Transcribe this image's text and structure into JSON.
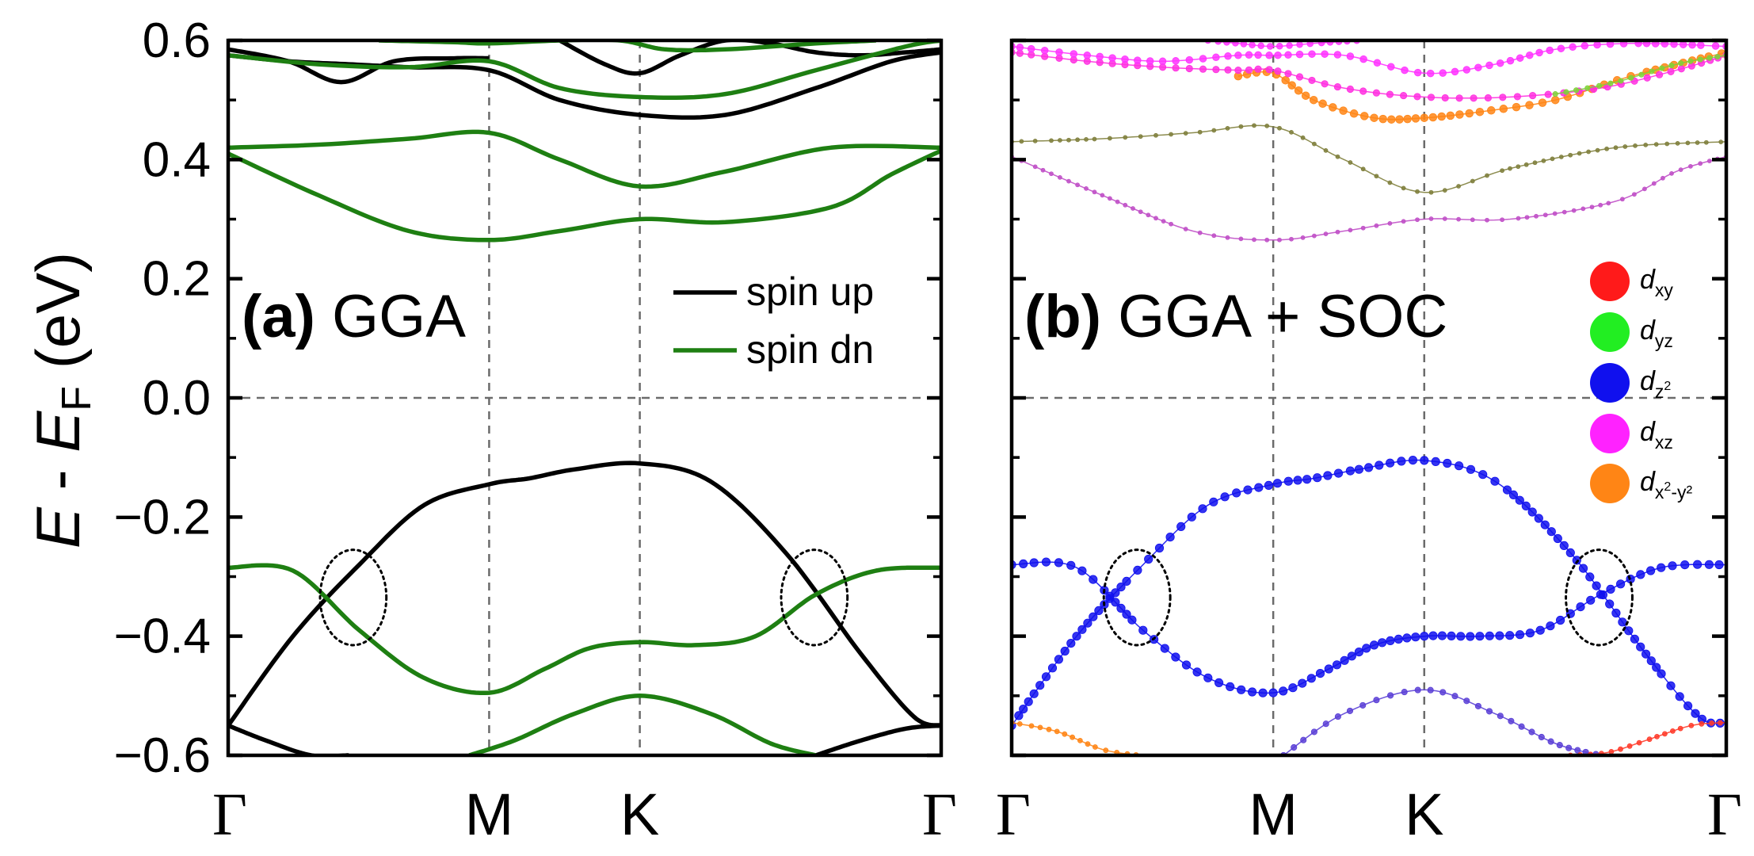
{
  "chart_data": [
    {
      "type": "line",
      "panel_label": "(a)",
      "title": "GGA",
      "ylabel": "E - E_F (eV)",
      "ylim": [
        -0.6,
        0.6
      ],
      "yticks": [
        "0.6",
        "0.4",
        "0.2",
        "0.0",
        "−0.2",
        "−0.4",
        "−0.6"
      ],
      "kpath": [
        "Γ",
        "M",
        "K",
        "Γ"
      ],
      "kpath_positions": [
        0,
        1.732,
        2.732,
        4.732
      ],
      "legend": [
        "spin up",
        "spin dn"
      ],
      "series": [
        {
          "name": "spin up",
          "color": "#000000",
          "bands": [
            {
              "k": [
                0,
                0.43,
                0.87,
                1.3,
                1.732,
                2.0,
                2.3,
                2.732,
                3.2,
                3.7,
                4.2,
                4.55,
                4.732
              ],
              "e": [
                -0.55,
                -0.4,
                -0.28,
                -0.18,
                -0.145,
                -0.135,
                -0.12,
                -0.11,
                -0.14,
                -0.26,
                -0.43,
                -0.535,
                -0.55
              ]
            },
            {
              "k": [
                0,
                0.25,
                0.55,
                0.8
              ],
              "e": [
                -0.55,
                -0.575,
                -0.6,
                -0.6
              ]
            },
            {
              "k": [
                3.9,
                4.2,
                4.5,
                4.732
              ],
              "e": [
                -0.6,
                -0.575,
                -0.555,
                -0.55
              ]
            },
            {
              "k": [
                0,
                0.4,
                0.75,
                1.1,
                1.5,
                1.732
              ],
              "e": [
                0.585,
                0.565,
                0.53,
                0.565,
                0.57,
                0.57
              ]
            },
            {
              "k": [
                0,
                0.4,
                0.8,
                1.2,
                1.732,
                2.2,
                2.732,
                3.3,
                3.9,
                4.4,
                4.732
              ],
              "e": [
                0.575,
                0.565,
                0.56,
                0.555,
                0.55,
                0.5,
                0.475,
                0.475,
                0.52,
                0.565,
                0.58
              ]
            },
            {
              "k": [
                2.2,
                2.5,
                2.732,
                3.0,
                3.3,
                3.6,
                3.9,
                4.2,
                4.5,
                4.732
              ],
              "e": [
                0.6,
                0.56,
                0.545,
                0.575,
                0.6,
                0.595,
                0.58,
                0.575,
                0.58,
                0.585
              ]
            }
          ]
        },
        {
          "name": "spin dn",
          "color": "#1e7f12",
          "bands": [
            {
              "k": [
                0,
                0.43,
                0.87,
                1.3,
                1.732,
                2.1,
                2.4,
                2.732,
                3.1,
                3.5,
                3.9,
                4.3,
                4.732
              ],
              "e": [
                -0.285,
                -0.29,
                -0.39,
                -0.47,
                -0.495,
                -0.455,
                -0.42,
                -0.41,
                -0.415,
                -0.4,
                -0.33,
                -0.29,
                -0.285
              ]
            },
            {
              "k": [
                1.6,
                1.9,
                2.3,
                2.732,
                3.2,
                3.6,
                3.9
              ],
              "e": [
                -0.6,
                -0.575,
                -0.53,
                -0.5,
                -0.53,
                -0.58,
                -0.6
              ]
            },
            {
              "k": [
                0,
                0.6,
                1.2,
                1.732,
                2.2,
                2.732,
                3.3,
                4.0,
                4.4,
                4.732
              ],
              "e": [
                0.41,
                0.34,
                0.28,
                0.265,
                0.28,
                0.3,
                0.295,
                0.32,
                0.375,
                0.415
              ]
            },
            {
              "k": [
                0,
                0.6,
                1.2,
                1.732,
                2.2,
                2.732,
                3.3,
                4.0,
                4.732
              ],
              "e": [
                0.42,
                0.425,
                0.435,
                0.445,
                0.4,
                0.355,
                0.38,
                0.42,
                0.42
              ]
            },
            {
              "k": [
                0,
                0.6,
                1.2,
                1.732,
                2.2,
                2.732,
                3.3,
                3.9,
                4.5,
                4.732
              ],
              "e": [
                0.575,
                0.56,
                0.555,
                0.565,
                0.52,
                0.505,
                0.51,
                0.55,
                0.59,
                0.6
              ]
            },
            {
              "k": [
                1.0,
                1.5,
                1.732,
                2.2,
                2.6,
                2.9,
                3.3,
                3.9,
                4.3
              ],
              "e": [
                0.6,
                0.597,
                0.595,
                0.6,
                0.6,
                0.585,
                0.585,
                0.595,
                0.6
              ]
            }
          ]
        }
      ],
      "annotations": [
        {
          "type": "dotted-ellipse",
          "k": 0.83,
          "e": -0.335,
          "rk": 0.22,
          "re": 0.08
        },
        {
          "type": "dotted-ellipse",
          "k": 3.89,
          "e": -0.335,
          "rk": 0.22,
          "re": 0.08
        }
      ]
    },
    {
      "type": "scatter",
      "panel_label": "(b)",
      "title": "GGA + SOC",
      "ylabel": "E - E_F (eV)",
      "ylim": [
        -0.6,
        0.6
      ],
      "kpath": [
        "Γ",
        "M",
        "K",
        "Γ"
      ],
      "kpath_positions": [
        0,
        1.732,
        2.732,
        4.732
      ],
      "legend": [
        {
          "base": "d",
          "sub": "xy",
          "sup": "",
          "sub2": "",
          "color": "#ff1a1a"
        },
        {
          "base": "d",
          "sub": "yz",
          "sup": "",
          "sub2": "",
          "color": "#22ee22"
        },
        {
          "base": "d",
          "sub": "z",
          "sup": "2",
          "sub2": "",
          "color": "#1010ee"
        },
        {
          "base": "d",
          "sub": "xz",
          "sup": "",
          "sub2": "",
          "color": "#ff22ff"
        },
        {
          "base": "d",
          "sub": "x",
          "sup": "2",
          "sub2": "-y²",
          "color": "#ff8515"
        }
      ],
      "bands": [
        {
          "color": "#1010ee",
          "weight": 1.0,
          "k": [
            0,
            0.43,
            0.87,
            1.3,
            1.732,
            2.0,
            2.3,
            2.732,
            3.2,
            3.7,
            4.2,
            4.55,
            4.732
          ],
          "e": [
            -0.55,
            -0.4,
            -0.28,
            -0.18,
            -0.145,
            -0.135,
            -0.12,
            -0.105,
            -0.14,
            -0.26,
            -0.43,
            -0.535,
            -0.545
          ]
        },
        {
          "color": "#1010ee",
          "weight": 1.0,
          "k": [
            0,
            0.43,
            0.87,
            1.3,
            1.732,
            2.1,
            2.4,
            2.732,
            3.1,
            3.5,
            3.9,
            4.3,
            4.732
          ],
          "e": [
            -0.28,
            -0.285,
            -0.39,
            -0.47,
            -0.495,
            -0.455,
            -0.415,
            -0.4,
            -0.4,
            -0.39,
            -0.33,
            -0.285,
            -0.28
          ]
        },
        {
          "color": "#5a3fd6",
          "weight": 0.55,
          "k": [
            1.8,
            2.2,
            2.732,
            3.2,
            3.6,
            3.9
          ],
          "e": [
            -0.6,
            -0.53,
            -0.49,
            -0.53,
            -0.58,
            -0.6
          ]
        },
        {
          "color": "#ff8515",
          "weight": 0.35,
          "k": [
            0,
            0.3,
            0.6,
            0.85
          ],
          "e": [
            -0.545,
            -0.56,
            -0.59,
            -0.6
          ]
        },
        {
          "color": "#ff3b2a",
          "weight": 0.35,
          "k": [
            3.7,
            3.95,
            4.2,
            4.5,
            4.732
          ],
          "e": [
            -0.6,
            -0.595,
            -0.575,
            -0.55,
            -0.545
          ]
        },
        {
          "color": "#c04fc7",
          "weight": 0.2,
          "k": [
            0,
            0.6,
            1.2,
            1.732,
            2.2,
            2.732,
            3.3,
            4.0,
            4.4,
            4.732
          ],
          "e": [
            0.405,
            0.34,
            0.28,
            0.265,
            0.28,
            0.3,
            0.3,
            0.33,
            0.38,
            0.405
          ]
        },
        {
          "color": "#7f7f3c",
          "weight": 0.2,
          "k": [
            0,
            0.6,
            1.2,
            1.732,
            2.2,
            2.732,
            3.3,
            4.0,
            4.732
          ],
          "e": [
            0.43,
            0.435,
            0.445,
            0.455,
            0.4,
            0.345,
            0.385,
            0.42,
            0.43
          ]
        },
        {
          "color": "#ff8515",
          "weight": 0.9,
          "k": [
            1.5,
            1.732,
            2.0,
            2.4,
            2.732,
            3.1,
            3.6,
            4.1,
            4.732
          ],
          "e": [
            0.54,
            0.545,
            0.5,
            0.47,
            0.47,
            0.48,
            0.5,
            0.54,
            0.58
          ]
        },
        {
          "color": "#ff2fe0",
          "weight": 0.7,
          "k": [
            0,
            0.5,
            1.0,
            1.5,
            1.732,
            2.2,
            2.732,
            3.3,
            3.9,
            4.4,
            4.732
          ],
          "e": [
            0.58,
            0.565,
            0.555,
            0.55,
            0.55,
            0.52,
            0.505,
            0.505,
            0.52,
            0.55,
            0.575
          ]
        },
        {
          "color": "#ff33ff",
          "weight": 0.75,
          "k": [
            0,
            0.5,
            1.0,
            1.5,
            1.732,
            2.2,
            2.732,
            3.2,
            3.6,
            4.1,
            4.732
          ],
          "e": [
            0.59,
            0.575,
            0.565,
            0.575,
            0.575,
            0.575,
            0.545,
            0.56,
            0.585,
            0.595,
            0.59
          ]
        },
        {
          "color": "#7fd23a",
          "weight": 0.4,
          "k": [
            3.6,
            4.0,
            4.4,
            4.732
          ],
          "e": [
            0.51,
            0.53,
            0.56,
            0.575
          ]
        },
        {
          "color": "#ff33ff",
          "weight": 0.6,
          "k": [
            1.3,
            1.5,
            1.732,
            2.0,
            2.3
          ],
          "e": [
            0.6,
            0.595,
            0.59,
            0.595,
            0.6
          ]
        }
      ],
      "annotations": [
        {
          "type": "dotted-ellipse",
          "k": 0.83,
          "e": -0.335,
          "rk": 0.22,
          "re": 0.08
        },
        {
          "type": "dotted-ellipse",
          "k": 3.89,
          "e": -0.335,
          "rk": 0.22,
          "re": 0.08
        }
      ]
    }
  ]
}
